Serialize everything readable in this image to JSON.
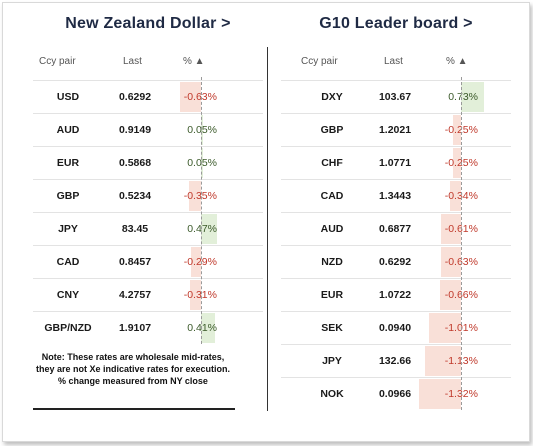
{
  "left": {
    "title": "New Zealand Dollar >",
    "headers": {
      "pair": "Ccy pair",
      "last": "Last",
      "pct": "% ▲"
    },
    "rows": [
      {
        "pair": "USD",
        "last": "0.6292",
        "pct": "-0.63%",
        "value": -0.63
      },
      {
        "pair": "AUD",
        "last": "0.9149",
        "pct": "0.05%",
        "value": 0.05
      },
      {
        "pair": "EUR",
        "last": "0.5868",
        "pct": "0.05%",
        "value": 0.05
      },
      {
        "pair": "GBP",
        "last": "0.5234",
        "pct": "-0.35%",
        "value": -0.35
      },
      {
        "pair": "JPY",
        "last": "83.45",
        "pct": "0.47%",
        "value": 0.47
      },
      {
        "pair": "CAD",
        "last": "0.8457",
        "pct": "-0.29%",
        "value": -0.29
      },
      {
        "pair": "CNY",
        "last": "4.2757",
        "pct": "-0.31%",
        "value": -0.31
      },
      {
        "pair": "GBP/NZD",
        "last": "1.9107",
        "pct": "0.41%",
        "value": 0.41
      }
    ],
    "note": "Note: These rates are wholesale mid-rates, they are not Xe indicative rates for execution. % change measured from NY close"
  },
  "right": {
    "title": "G10 Leader board >",
    "headers": {
      "pair": "Ccy pair",
      "last": "Last",
      "pct": "% ▲"
    },
    "rows": [
      {
        "pair": "DXY",
        "last": "103.67",
        "pct": "0.73%",
        "value": 0.73
      },
      {
        "pair": "GBP",
        "last": "1.2021",
        "pct": "-0.25%",
        "value": -0.25
      },
      {
        "pair": "CHF",
        "last": "1.0771",
        "pct": "-0.25%",
        "value": -0.25
      },
      {
        "pair": "CAD",
        "last": "1.3443",
        "pct": "-0.34%",
        "value": -0.34
      },
      {
        "pair": "AUD",
        "last": "0.6877",
        "pct": "-0.61%",
        "value": -0.61
      },
      {
        "pair": "NZD",
        "last": "0.6292",
        "pct": "-0.63%",
        "value": -0.63
      },
      {
        "pair": "EUR",
        "last": "1.0722",
        "pct": "-0.66%",
        "value": -0.66
      },
      {
        "pair": "SEK",
        "last": "0.0940",
        "pct": "-1.01%",
        "value": -1.01
      },
      {
        "pair": "JPY",
        "last": "132.66",
        "pct": "-1.13%",
        "value": -1.13
      },
      {
        "pair": "NOK",
        "last": "0.0966",
        "pct": "-1.32%",
        "value": -1.32
      }
    ]
  },
  "colors": {
    "negative_fill": "#f9e0d8",
    "positive_fill": "#e2efd9",
    "negative_text": "#c0392b",
    "positive_text": "#3b5a2a"
  }
}
